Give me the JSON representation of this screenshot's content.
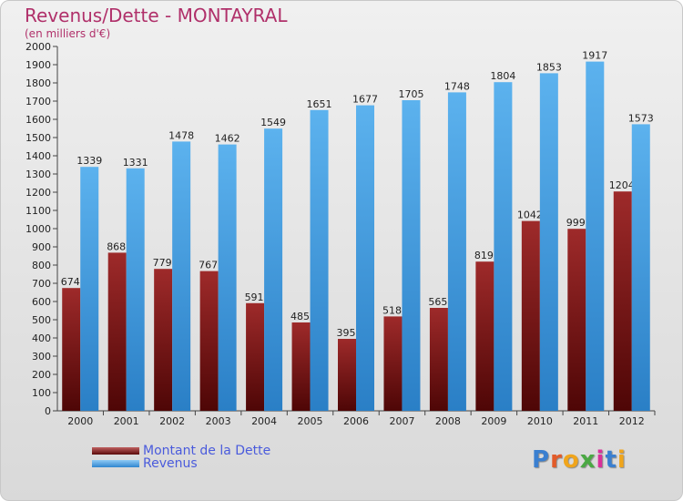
{
  "title": "Revenus/Dette - MONTAYRAL",
  "subtitle": "(en milliers d'€)",
  "logo": "Proxiti",
  "colors": {
    "debt": "#8b1a1a",
    "revenue": "#4aa3e6",
    "title": "#b0306a",
    "legend_text": "#4a5bdc"
  },
  "chart_data": {
    "type": "bar",
    "categories": [
      "2000",
      "2001",
      "2002",
      "2003",
      "2004",
      "2005",
      "2006",
      "2007",
      "2008",
      "2009",
      "2010",
      "2011",
      "2012"
    ],
    "series": [
      {
        "name": "Montant de la Dette",
        "values": [
          674,
          868,
          779,
          767,
          591,
          485,
          395,
          518,
          565,
          819,
          1042,
          999,
          1204
        ]
      },
      {
        "name": "Revenus",
        "values": [
          1339,
          1331,
          1478,
          1462,
          1549,
          1651,
          1677,
          1705,
          1748,
          1804,
          1853,
          1917,
          1573
        ]
      }
    ],
    "ylim": [
      0,
      2000
    ],
    "ytick_step": 100,
    "grid": false,
    "legend": "bottom-left"
  }
}
